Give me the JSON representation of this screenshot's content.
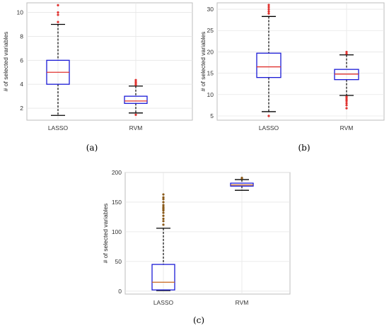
{
  "chart_data": [
    {
      "type": "box",
      "panel_label": "(a)",
      "ylabel": "# of selected variables",
      "categories": [
        "LASSO",
        "RVM"
      ],
      "ylim": [
        1,
        10.8
      ],
      "yticks": [
        2,
        4,
        6,
        8,
        10
      ],
      "grid": true,
      "colors": {
        "box": "#1a1ad6",
        "median": "#e0322f",
        "whisker": "#000000",
        "outlier": "#e0322f"
      },
      "boxes": [
        {
          "name": "LASSO",
          "min": 1.4,
          "q1": 4.0,
          "median": 5.0,
          "q3": 6.0,
          "max": 9.0,
          "outliers": [
            9.2,
            9.8,
            10.0,
            10.6
          ]
        },
        {
          "name": "RVM",
          "min": 1.6,
          "q1": 2.4,
          "median": 2.6,
          "q3": 3.0,
          "max": 3.85,
          "outliers": [
            1.45,
            3.95,
            4.1,
            4.2,
            4.35
          ]
        }
      ]
    },
    {
      "type": "box",
      "panel_label": "(b)",
      "ylabel": "# of selected variables",
      "categories": [
        "LASSO",
        "RVM"
      ],
      "ylim": [
        4,
        31.5
      ],
      "yticks": [
        5,
        10,
        15,
        20,
        25,
        30
      ],
      "grid": true,
      "colors": {
        "box": "#1a1ad6",
        "median": "#e0322f",
        "whisker": "#000000",
        "outlier": "#e0322f"
      },
      "boxes": [
        {
          "name": "LASSO",
          "min": 6,
          "q1": 14,
          "median": 16.5,
          "q3": 19.7,
          "max": 28.3,
          "outliers": [
            5,
            29,
            29.5,
            30,
            30.5,
            31
          ]
        },
        {
          "name": "RVM",
          "min": 9.8,
          "q1": 13.5,
          "median": 14.8,
          "q3": 15.9,
          "max": 19.3,
          "outliers": [
            6.8,
            7.5,
            8,
            8.5,
            8.8,
            9.2,
            9.5,
            19.6,
            20.0
          ]
        }
      ]
    },
    {
      "type": "box",
      "panel_label": "(c)",
      "ylabel": "# of selected variables",
      "categories": [
        "LASSO",
        "RVM"
      ],
      "ylim": [
        -5,
        200
      ],
      "yticks": [
        0,
        50,
        100,
        150,
        200
      ],
      "grid": true,
      "colors": {
        "box": "#1a1ad6",
        "median": "#c8651a",
        "whisker": "#000000",
        "outlier": "#8a5a1a"
      },
      "boxes": [
        {
          "name": "LASSO",
          "min": 1,
          "q1": 2,
          "median": 15,
          "q3": 45,
          "max": 106,
          "outliers": [
            112,
            118,
            122,
            127,
            132,
            136,
            138,
            140,
            142,
            145,
            150,
            155,
            158,
            163
          ]
        },
        {
          "name": "RVM",
          "min": 170,
          "q1": 177,
          "median": 179,
          "q3": 182,
          "max": 188,
          "outliers": [
            190,
            191
          ]
        }
      ]
    }
  ]
}
